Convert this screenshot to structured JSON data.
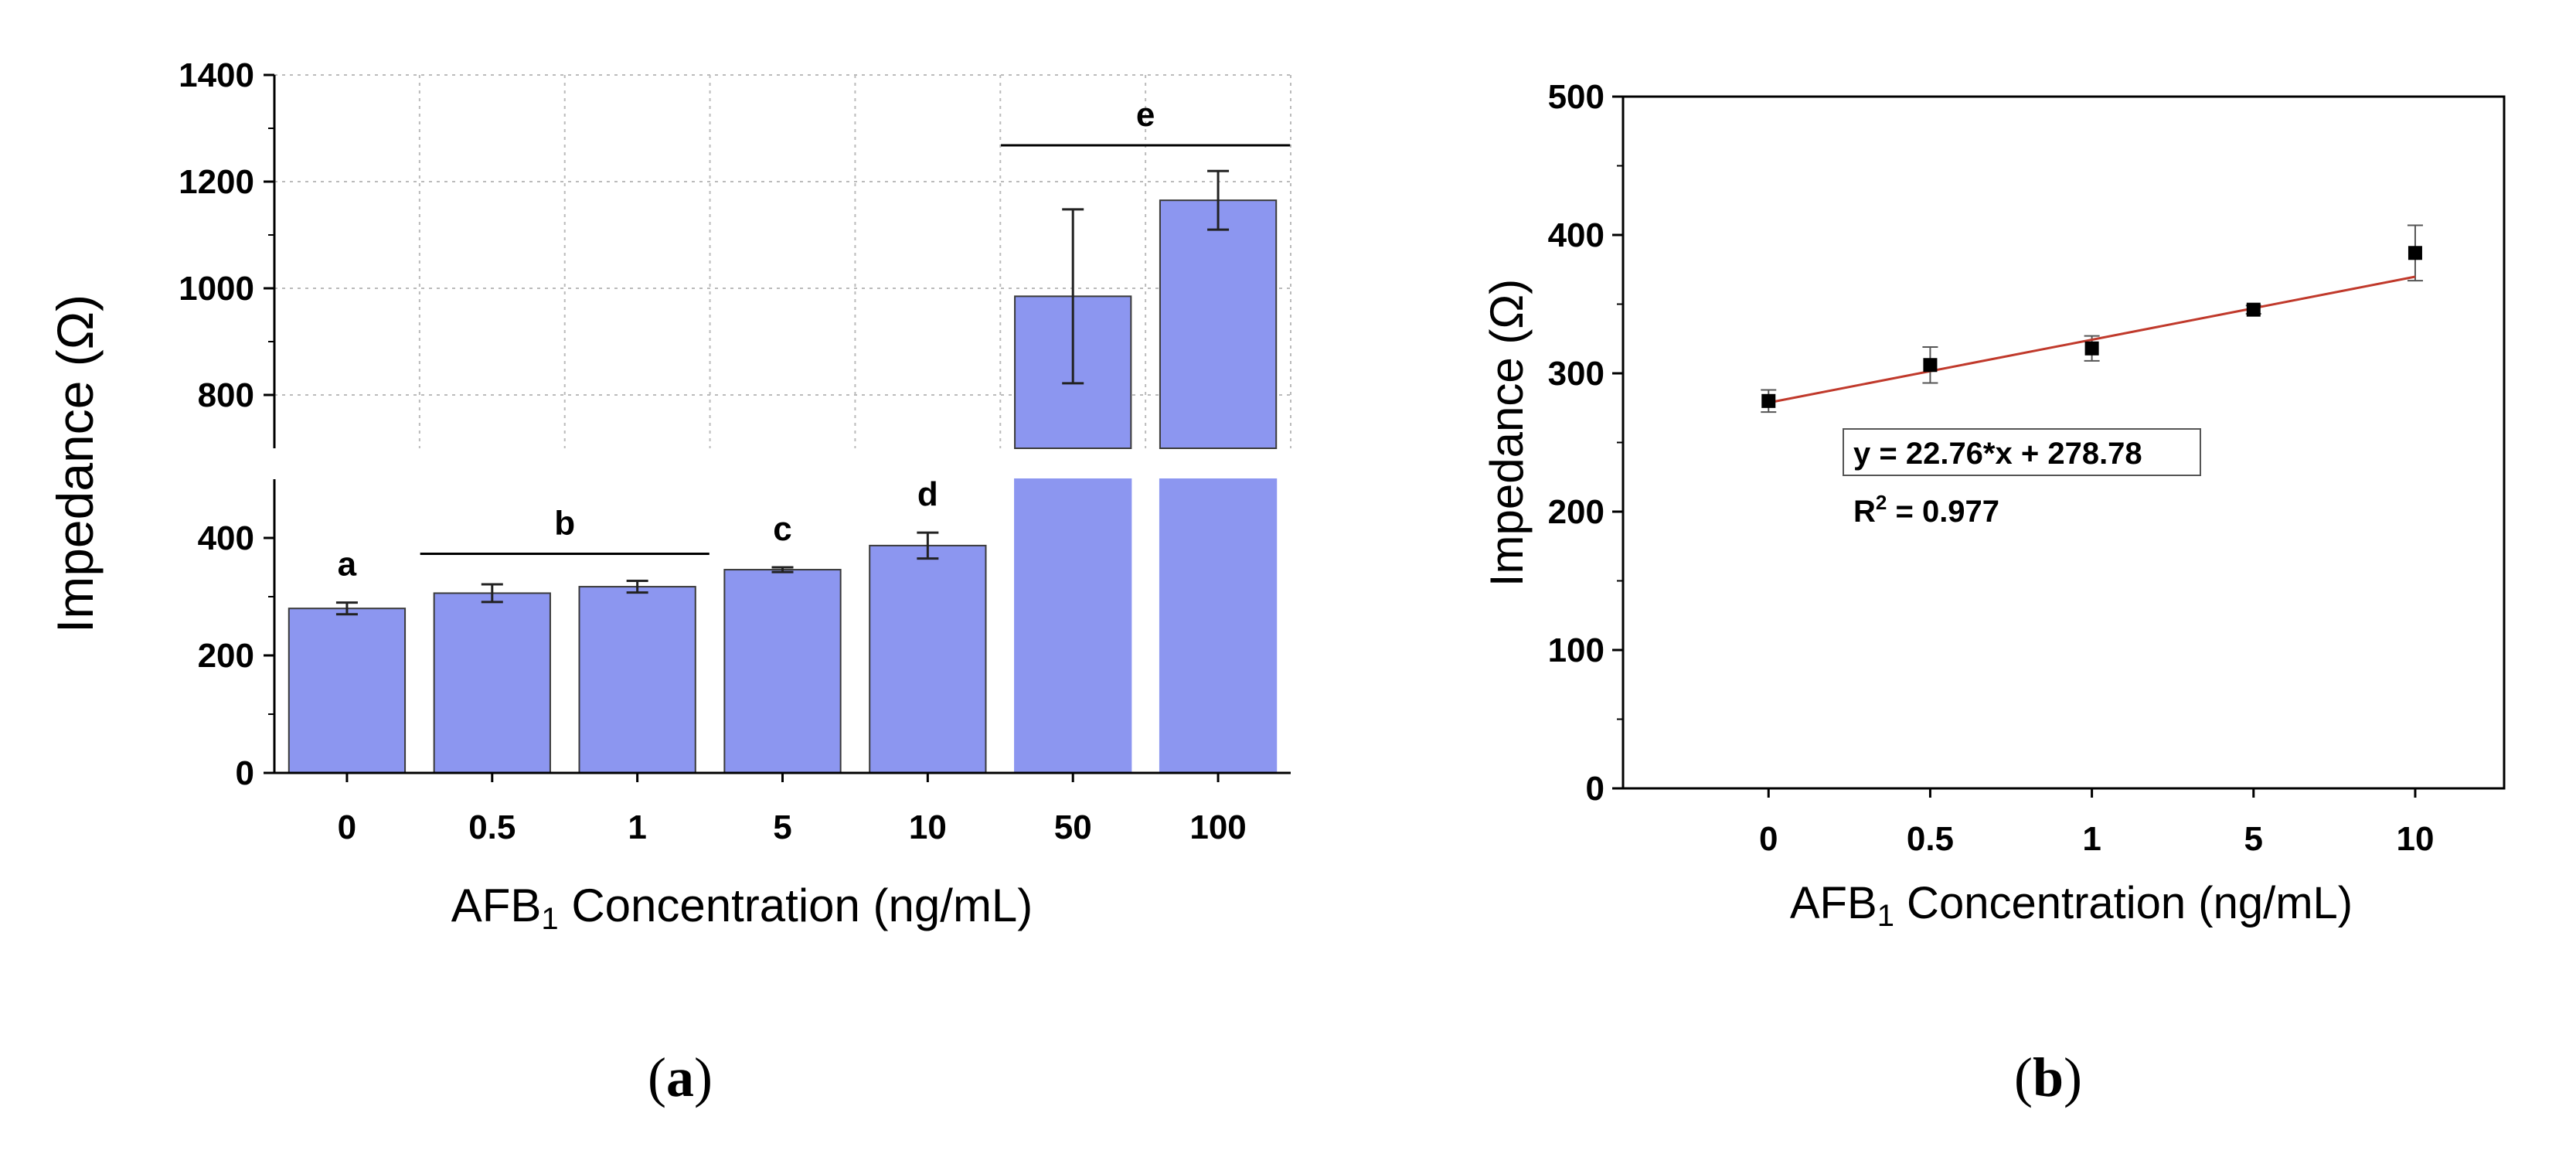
{
  "chart_data": [
    {
      "type": "bar",
      "panel_label": "a",
      "categories": [
        "0",
        "0.5",
        "1",
        "5",
        "10",
        "50",
        "100"
      ],
      "values": [
        280,
        306,
        317,
        346,
        387,
        985,
        1165
      ],
      "errors": [
        10,
        15,
        10,
        4,
        22,
        163,
        55
      ],
      "ylabel": "Impedance (Ω)",
      "xlabel": {
        "prefix": "AFB",
        "subscript": "1",
        "suffix": " Concentration (ng/mL)"
      },
      "axis_break": {
        "lower_range": [
          0,
          500
        ],
        "upper_range": [
          700,
          1400
        ]
      },
      "yticks_lower": [
        "0",
        "200",
        "400"
      ],
      "yticks_upper": [
        "800",
        "1000",
        "1200",
        "1400"
      ],
      "bar_color": "#8c96f0",
      "significance": [
        {
          "label": "a",
          "from": 0,
          "to": 0,
          "line": false
        },
        {
          "label": "b",
          "from": 1,
          "to": 2,
          "line": true
        },
        {
          "label": "c",
          "from": 3,
          "to": 3,
          "line": false
        },
        {
          "label": "d",
          "from": 4,
          "to": 4,
          "line": false
        },
        {
          "label": "e",
          "from": 5,
          "to": 6,
          "line": true
        }
      ]
    },
    {
      "type": "scatter",
      "panel_label": "b",
      "categories": [
        "0",
        "0.5",
        "1",
        "5",
        "10"
      ],
      "x": [
        0,
        1,
        2,
        3,
        4
      ],
      "values": [
        280,
        306,
        318,
        346,
        387
      ],
      "errors": [
        8,
        13,
        9,
        3,
        20
      ],
      "ylabel": "Impedance (Ω)",
      "xlabel": {
        "prefix": "AFB",
        "subscript": "1",
        "suffix": " Concentration (ng/mL)"
      },
      "ylim": [
        0,
        500
      ],
      "yticks": [
        "0",
        "100",
        "200",
        "300",
        "400",
        "500"
      ],
      "fit": {
        "slope": 22.76,
        "intercept": 278.78,
        "color": "#c0392b"
      },
      "equation": "y = 22.76*x + 278.78",
      "r_squared": {
        "prefix": "R",
        "sup": "2",
        "suffix": " = 0.977"
      }
    }
  ]
}
